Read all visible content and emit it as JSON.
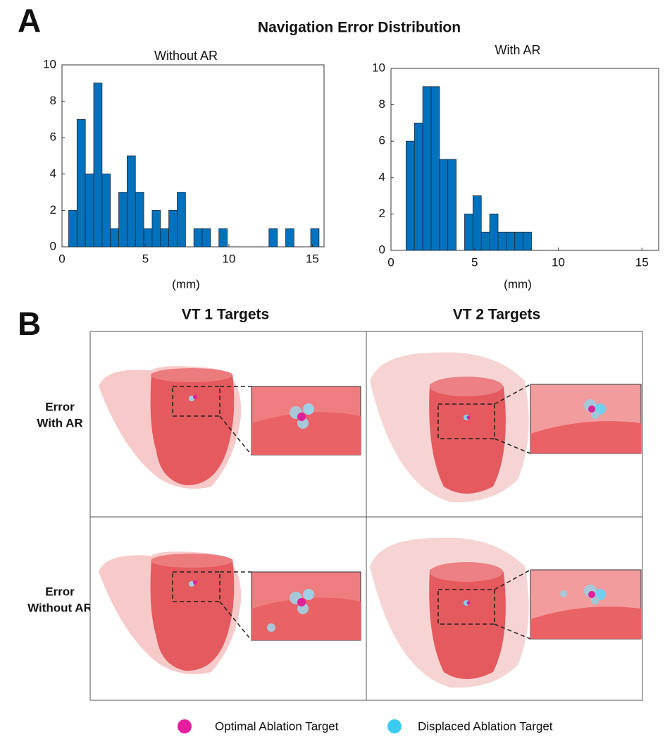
{
  "figure": {
    "panel_a": "A",
    "title": "Navigation Error Distribution",
    "panel_b": "B",
    "columns": [
      "VT 1 Targets",
      "VT 2 Targets"
    ],
    "rows": [
      [
        "Error",
        "With AR"
      ],
      [
        "Error",
        "Without AR"
      ]
    ],
    "legend": [
      "Optimal Ablation Target",
      "Displaced Ablation Target"
    ]
  },
  "chart_data": [
    {
      "type": "histogram",
      "title": "Without AR",
      "xlabel": "(mm)",
      "color": "#0072bd",
      "bins": [
        0.4,
        0.9,
        1.4,
        1.9,
        2.4,
        2.9,
        3.4,
        3.9,
        4.4,
        4.9,
        5.4,
        5.9,
        6.4,
        6.9,
        7.4,
        7.9,
        8.4,
        8.9,
        9.4,
        9.9,
        10.4,
        10.9,
        11.4,
        11.9,
        12.4,
        12.9,
        13.4,
        13.9,
        14.4,
        14.9,
        15.4
      ],
      "values": [
        2,
        7,
        4,
        9,
        4,
        1,
        3,
        5,
        3,
        1,
        2,
        1,
        2,
        3,
        0,
        1,
        1,
        0,
        1,
        0,
        0,
        0,
        0,
        0,
        1,
        0,
        1,
        0,
        0,
        1
      ],
      "xlim": [
        0,
        15.7
      ],
      "ylim": [
        0,
        10
      ],
      "xticks": [
        0,
        5,
        10,
        15
      ],
      "yticks": [
        0,
        2,
        4,
        6,
        8,
        10
      ]
    },
    {
      "type": "histogram",
      "title": "With AR",
      "xlabel": "(mm)",
      "color": "#0072bd",
      "bins": [
        0.9,
        1.4,
        1.9,
        2.4,
        2.9,
        3.4,
        3.9,
        4.4,
        4.9,
        5.4,
        5.9,
        6.4,
        6.9,
        7.4,
        7.9,
        8.4
      ],
      "values": [
        6,
        7,
        9,
        9,
        5,
        5,
        0,
        2,
        3,
        1,
        2,
        1,
        1,
        1,
        1
      ],
      "xlim": [
        0,
        16
      ],
      "ylim": [
        0,
        10
      ],
      "xticks": [
        0,
        5,
        10,
        15
      ],
      "yticks": [
        0,
        2,
        4,
        6,
        8,
        10
      ]
    }
  ]
}
